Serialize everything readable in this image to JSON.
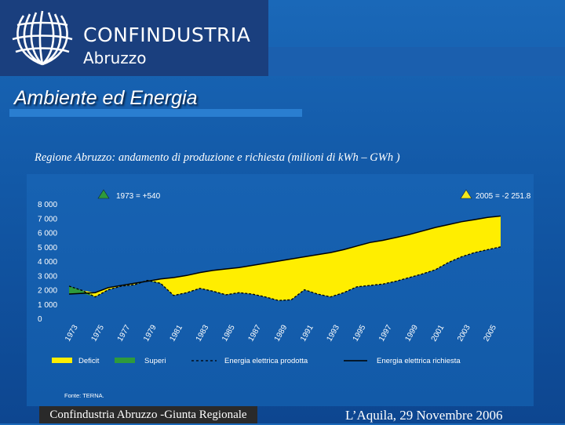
{
  "header": {
    "org_name": "CONFINDUSTRIA",
    "org_region": "Abruzzo",
    "section_title": "Ambiente ed Energia"
  },
  "chart_caption": "Regione Abruzzo: andamento di produzione e richiesta (milioni di kWh – GWh )",
  "chart_data": {
    "type": "area",
    "title": "Regione Abruzzo: andamento di produzione e richiesta (milioni di kWh – GWh )",
    "ylim": [
      0,
      8000
    ],
    "yticks": [
      0,
      1000,
      2000,
      3000,
      4000,
      5000,
      6000,
      7000,
      8000
    ],
    "ytick_labels": [
      "0",
      "1 000",
      "2 000",
      "3 000",
      "4 000",
      "5 000",
      "6 000",
      "7 000",
      "8 000"
    ],
    "xlim": [
      1973,
      2006
    ],
    "xtick_labels": [
      "1973",
      "1975",
      "1977",
      "1979",
      "1981",
      "1983",
      "1985",
      "1987",
      "1989",
      "1991",
      "1993",
      "1995",
      "1997",
      "1999",
      "2001",
      "2003",
      "2005"
    ],
    "x": [
      1973,
      1974,
      1975,
      1976,
      1977,
      1978,
      1979,
      1980,
      1981,
      1982,
      1983,
      1984,
      1985,
      1986,
      1987,
      1988,
      1989,
      1990,
      1991,
      1992,
      1993,
      1994,
      1995,
      1996,
      1997,
      1998,
      1999,
      2000,
      2001,
      2002,
      2003,
      2004,
      2005,
      2006
    ],
    "series": [
      {
        "name": "Energia elettrica prodotta",
        "values": [
          2250,
          1950,
          1500,
          2000,
          2250,
          2350,
          2650,
          2450,
          1600,
          1800,
          2100,
          1900,
          1650,
          1800,
          1700,
          1500,
          1250,
          1300,
          2000,
          1700,
          1500,
          1800,
          2200,
          2300,
          2400,
          2600,
          2850,
          3100,
          3400,
          3900,
          4300,
          4600,
          4800,
          5000
        ]
      },
      {
        "name": "Energia elettrica richiesta",
        "values": [
          1700,
          1750,
          1800,
          2150,
          2300,
          2450,
          2600,
          2750,
          2850,
          3000,
          3200,
          3350,
          3450,
          3550,
          3700,
          3850,
          4000,
          4150,
          4300,
          4450,
          4600,
          4800,
          5050,
          5300,
          5450,
          5650,
          5850,
          6100,
          6350,
          6550,
          6750,
          6900,
          7050,
          7150
        ]
      }
    ],
    "legend": [
      "Deficit",
      "Superi",
      "Energia elettrica prodotta",
      "Energia elettrica richiesta"
    ],
    "annotations": [
      {
        "label": "1973 = +540",
        "color": "#2e9a3c"
      },
      {
        "label": "2005 = -2 251.8",
        "color": "#f4e81c"
      }
    ],
    "source": "Fonte: TERNA."
  },
  "colors": {
    "deficit": "#ffee00",
    "surplus": "#2e9a3c",
    "line": "#000000",
    "axis_text": "#ffffff"
  },
  "footer": {
    "left": "Confindustria Abruzzo -Giunta Regionale",
    "right": "L’Aquila, 29 Novembre 2006"
  }
}
